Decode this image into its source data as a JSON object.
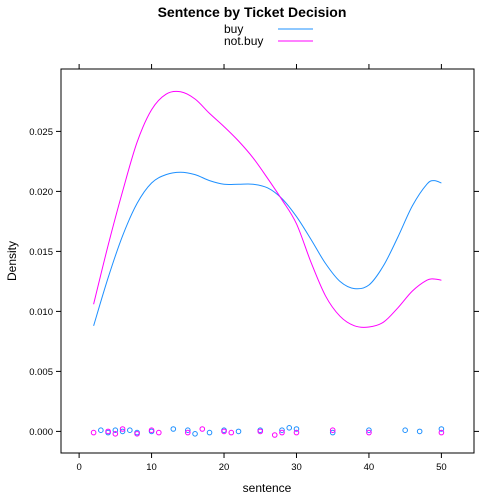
{
  "chart_data": {
    "type": "line",
    "title": "Sentence by Ticket Decision",
    "xlabel": "sentence",
    "ylabel": "Density",
    "xlim": [
      -2.5,
      54.5
    ],
    "ylim": [
      -0.0018,
      0.0302
    ],
    "x_ticks": [
      0,
      10,
      20,
      30,
      40,
      50
    ],
    "y_ticks": [
      0.0,
      0.005,
      0.01,
      0.015,
      0.02,
      0.025
    ],
    "x_tick_labels": [
      "0",
      "10",
      "20",
      "30",
      "40",
      "50"
    ],
    "y_tick_labels": [
      "0.000",
      "0.005",
      "0.010",
      "0.015",
      "0.020",
      "0.025"
    ],
    "grid": false,
    "legend_position": "top",
    "series": [
      {
        "name": "buy",
        "color": "#1E90FF",
        "density": {
          "x": [
            2,
            4,
            6,
            8,
            10,
            12,
            14,
            16,
            18,
            20,
            22,
            24,
            26,
            28,
            30,
            32,
            34,
            36,
            38,
            40,
            42,
            44,
            46,
            48,
            49,
            50
          ],
          "y": [
            0.0088,
            0.0128,
            0.0163,
            0.019,
            0.0207,
            0.0214,
            0.0216,
            0.0214,
            0.0209,
            0.0206,
            0.0206,
            0.0206,
            0.0203,
            0.0194,
            0.0179,
            0.016,
            0.014,
            0.0125,
            0.0119,
            0.0122,
            0.0138,
            0.0162,
            0.0188,
            0.0206,
            0.0209,
            0.0207
          ]
        },
        "rug": [
          3,
          4,
          5,
          6,
          7,
          8,
          10,
          13,
          15,
          16,
          18,
          20,
          22,
          25,
          28,
          29,
          30,
          35,
          40,
          45,
          47,
          50
        ],
        "rug_offsets": [
          0.0001,
          -0.0001,
          0.0001,
          0.0,
          0.0001,
          -0.0001,
          0.0,
          0.0002,
          0.0001,
          -0.0002,
          -0.0001,
          0.0001,
          0.0,
          0.0001,
          0.0001,
          0.0003,
          0.0002,
          -0.0001,
          0.0001,
          0.0001,
          0.0,
          0.0002
        ]
      },
      {
        "name": "not.buy",
        "color": "#FF00FF",
        "density": {
          "x": [
            2,
            4,
            6,
            8,
            10,
            12,
            14,
            16,
            18,
            20,
            22,
            24,
            26,
            28,
            30,
            32,
            34,
            36,
            38,
            40,
            42,
            44,
            46,
            48,
            49,
            50
          ],
          "y": [
            0.0106,
            0.0155,
            0.02,
            0.0241,
            0.0268,
            0.0281,
            0.0283,
            0.0277,
            0.0265,
            0.0254,
            0.0242,
            0.0228,
            0.0211,
            0.0193,
            0.0173,
            0.0141,
            0.0113,
            0.0096,
            0.0088,
            0.0087,
            0.0091,
            0.0103,
            0.0117,
            0.0126,
            0.0127,
            0.0126
          ]
        },
        "rug": [
          2,
          4,
          5,
          6,
          8,
          10,
          11,
          15,
          17,
          20,
          21,
          25,
          27,
          28,
          30,
          35,
          40,
          50
        ],
        "rug_offsets": [
          -0.0001,
          0.0,
          -0.0002,
          0.0002,
          -0.0002,
          0.0001,
          -0.0001,
          -0.0001,
          0.0002,
          0.0,
          -0.0001,
          0.0,
          -0.0003,
          -0.0001,
          -0.0001,
          0.0001,
          -0.0001,
          -0.0001
        ]
      }
    ]
  }
}
